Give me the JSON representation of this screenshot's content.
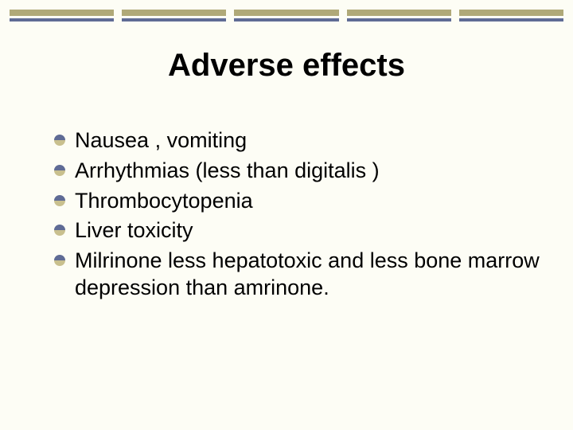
{
  "slide": {
    "background_color": "#fdfdf5",
    "title": "Adverse effects",
    "title_fontsize": 40,
    "title_color": "#000000",
    "bars": {
      "count": 5,
      "thick_height": 8,
      "thin_height": 4,
      "gap": 3,
      "colors_thick": [
        "#b0a978",
        "#b0a978",
        "#b0a978",
        "#b0a978",
        "#b0a978"
      ],
      "colors_thin": [
        "#5f6b95",
        "#5f6b95",
        "#5f6b95",
        "#5f6b95",
        "#5f6b95"
      ]
    },
    "bullet": {
      "diameter": 14,
      "top_color": "#5f6b95",
      "bottom_color": "#c9c08e"
    },
    "body_fontsize": 27,
    "body_color": "#000000",
    "items": [
      "Nausea , vomiting",
      "Arrhythmias (less than digitalis )",
      "Thrombocytopenia",
      "Liver toxicity",
      "Milrinone less hepatotoxic and less bone marrow depression than amrinone."
    ]
  }
}
